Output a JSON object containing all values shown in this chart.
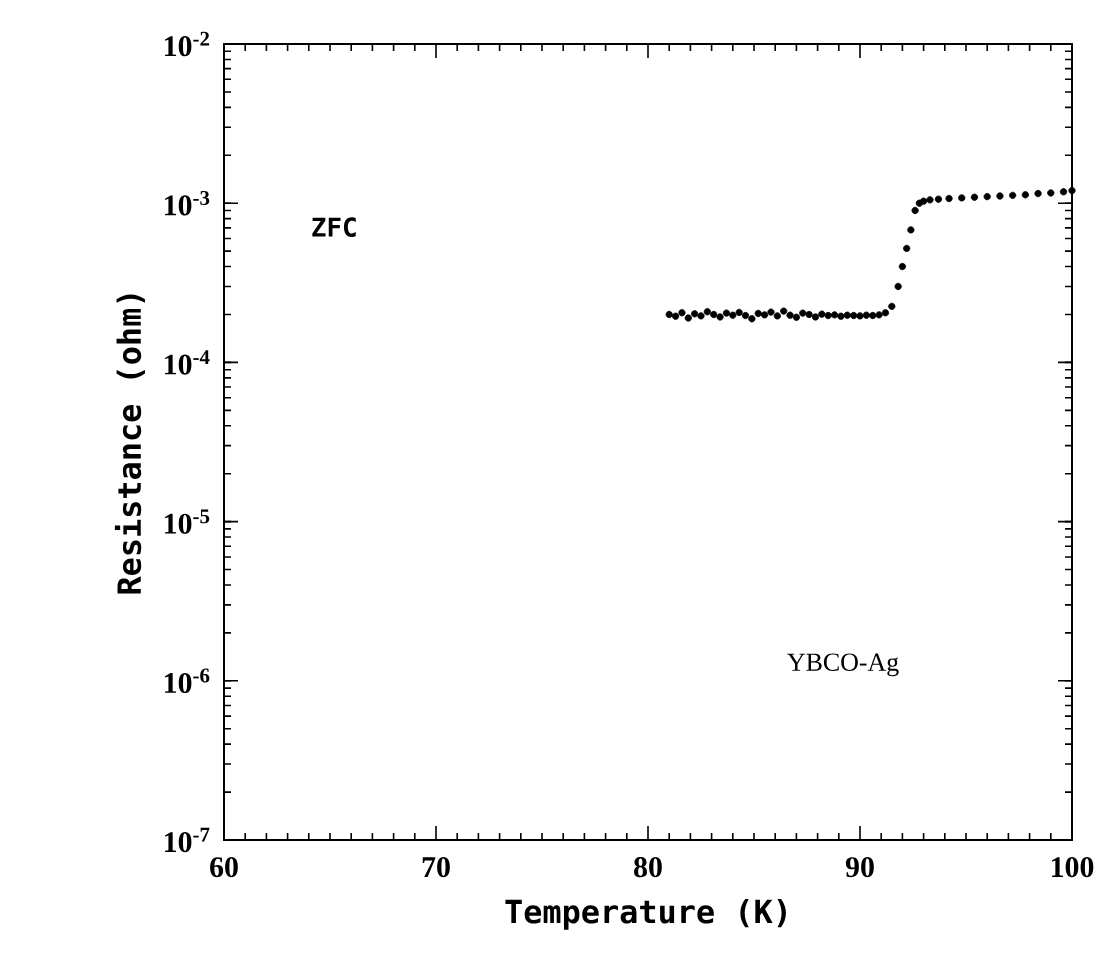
{
  "chart_data": {
    "type": "scatter",
    "xlabel": "Temperature (K)",
    "ylabel": "Resistance (ohm)",
    "annotations": [
      "ZFC",
      "YBCO-Ag"
    ],
    "log": "y",
    "marker": "circle",
    "grid": false,
    "xlim": [
      60,
      100
    ],
    "xticks": [
      60,
      70,
      80,
      90,
      100
    ],
    "ylim": [
      1e-07,
      0.01
    ],
    "yticks": [
      {
        "value": 1e-07,
        "label": "10$^{-7}$"
      },
      {
        "value": 1e-06,
        "label": "10$^{-6}$"
      },
      {
        "value": 1e-05,
        "label": "10$^{-5}$"
      },
      {
        "value": 0.0001,
        "label": "10$^{-4}$"
      },
      {
        "value": 0.001,
        "label": "10$^{-3}$"
      },
      {
        "value": 0.01,
        "label": "10$^{-2}$"
      }
    ],
    "series": [
      {
        "color": "#000000",
        "x": [
          81.0,
          81.3,
          81.6,
          81.9,
          82.2,
          82.5,
          82.8,
          83.1,
          83.4,
          83.7,
          84.0,
          84.3,
          84.6,
          84.9,
          85.2,
          85.5,
          85.8,
          86.1,
          86.4,
          86.7,
          87.0,
          87.3,
          87.6,
          87.9,
          88.2,
          88.5,
          88.8,
          89.1,
          89.4,
          89.7,
          90.0,
          90.3,
          90.6,
          90.9,
          91.2,
          91.5,
          91.8,
          92.0,
          92.2,
          92.4,
          92.6,
          92.8,
          93.0,
          93.3,
          93.7,
          94.2,
          94.8,
          95.4,
          96.0,
          96.6,
          97.2,
          97.8,
          98.4,
          99.0,
          99.6,
          100.0
        ],
        "values": [
          0.0002,
          0.000195,
          0.000205,
          0.00019,
          0.000202,
          0.000196,
          0.000208,
          0.0002,
          0.000193,
          0.000204,
          0.000198,
          0.000206,
          0.000197,
          0.000188,
          0.000203,
          0.000199,
          0.000207,
          0.000196,
          0.00021,
          0.000198,
          0.000192,
          0.000204,
          0.0002,
          0.000193,
          0.000201,
          0.000197,
          0.000199,
          0.000195,
          0.000198,
          0.000197,
          0.000196,
          0.000198,
          0.000197,
          0.000199,
          0.000205,
          0.000225,
          0.0003,
          0.0004,
          0.00052,
          0.00068,
          0.0009,
          0.001,
          0.00103,
          0.00105,
          0.00106,
          0.00107,
          0.00108,
          0.00109,
          0.0011,
          0.00111,
          0.00112,
          0.00113,
          0.00115,
          0.00116,
          0.00118,
          0.0012
        ]
      }
    ]
  }
}
